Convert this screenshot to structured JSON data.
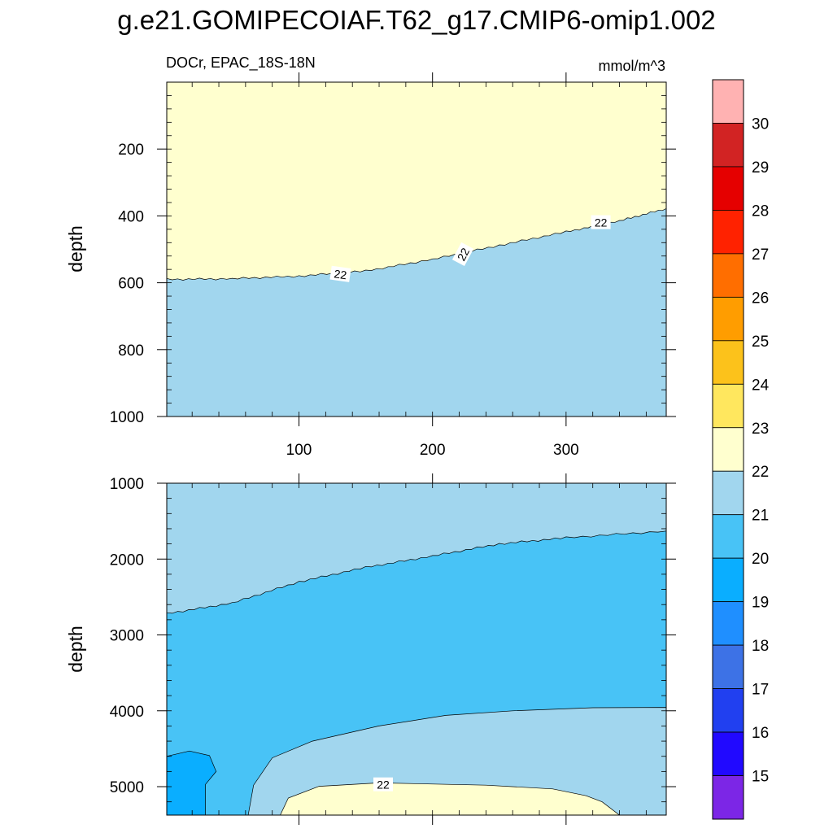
{
  "title": "g.e21.GOMIPECOIAF.T62_g17.CMIP6-omip1.002",
  "chart_data": {
    "type": "contour",
    "variable_label": "DOCr, EPAC_18S-18N",
    "units": "mmol/m^3",
    "x_tick_labels": [
      "100",
      "200",
      "300"
    ],
    "x_ticks": [
      100,
      200,
      300
    ],
    "xlim": [
      1,
      375
    ],
    "colors": {
      "below_15": "#7c26e6",
      "15-16": "#2109ff",
      "16-17": "#2140f0",
      "17-18": "#3d72e6",
      "18-19": "#1f8fff",
      "19-20": "#0aaeff",
      "20-21": "#48c3f6",
      "21-22": "#a1d6ee",
      "22-23": "#ffffcf",
      "23-24": "#ffe75e",
      "24-25": "#fcc21b",
      "25-26": "#ff9d00",
      "26-27": "#ff6e00",
      "27-28": "#ff2200",
      "28-29": "#e50000",
      "29-30": "#d22323",
      "above_30": "#ffb2b2"
    },
    "colorbar": {
      "levels": [
        15,
        16,
        17,
        18,
        19,
        20,
        21,
        22,
        23,
        24,
        25,
        26,
        27,
        28,
        29,
        30
      ],
      "labels": [
        "15",
        "16",
        "17",
        "18",
        "19",
        "20",
        "21",
        "22",
        "23",
        "24",
        "25",
        "26",
        "27",
        "28",
        "29",
        "30"
      ]
    },
    "panels": [
      {
        "id": "upper",
        "ylabel": "depth",
        "ylim": [
          0,
          1000
        ],
        "y_reversed": true,
        "y_ticks": [
          200,
          400,
          600,
          800,
          1000
        ],
        "y_tick_labels": [
          "200",
          "400",
          "600",
          "800",
          "1000"
        ],
        "background_band": "21-22",
        "regions": [
          {
            "band": "22-23",
            "boundary": [
              [
                1,
                590
              ],
              [
                50,
                588
              ],
              [
                100,
                580
              ],
              [
                150,
                565
              ],
              [
                200,
                530
              ],
              [
                250,
                488
              ],
              [
                300,
                448
              ],
              [
                340,
                415
              ],
              [
                375,
                378
              ]
            ],
            "fill_side": "above"
          }
        ],
        "contour_labels": [
          {
            "text": "22",
            "x": 131,
            "depth": 575,
            "angle": 8
          },
          {
            "text": "22",
            "x": 223,
            "depth": 515,
            "angle": -62
          },
          {
            "text": "22",
            "x": 326,
            "depth": 420,
            "angle": 0
          }
        ]
      },
      {
        "id": "lower",
        "ylabel": "depth",
        "ylim": [
          1000,
          5375
        ],
        "y_reversed": true,
        "y_ticks": [
          1000,
          2000,
          3000,
          4000,
          5000
        ],
        "y_tick_labels": [
          "1000",
          "2000",
          "3000",
          "4000",
          "5000"
        ],
        "background_band": "20-21",
        "regions": [
          {
            "band": "21-22",
            "boundary": [
              [
                1,
                2720
              ],
              [
                50,
                2580
              ],
              [
                100,
                2300
              ],
              [
                150,
                2110
              ],
              [
                200,
                1960
              ],
              [
                250,
                1800
              ],
              [
                300,
                1720
              ],
              [
                375,
                1630
              ]
            ],
            "fill_side": "above"
          },
          {
            "band": "21-22",
            "polygon": [
              [
                62,
                5375
              ],
              [
                66,
                4980
              ],
              [
                80,
                4620
              ],
              [
                110,
                4400
              ],
              [
                160,
                4200
              ],
              [
                210,
                4060
              ],
              [
                260,
                4000
              ],
              [
                320,
                3960
              ],
              [
                375,
                3955
              ],
              [
                375,
                5375
              ]
            ]
          },
          {
            "band": "19-20",
            "polygon": [
              [
                1,
                5375
              ],
              [
                1,
                4600
              ],
              [
                18,
                4530
              ],
              [
                33,
                4590
              ],
              [
                38,
                4800
              ],
              [
                30,
                4970
              ],
              [
                30,
                5375
              ]
            ]
          },
          {
            "band": "22-23",
            "polygon": [
              [
                86,
                5375
              ],
              [
                92,
                5150
              ],
              [
                115,
                4995
              ],
              [
                160,
                4950
              ],
              [
                240,
                4980
              ],
              [
                290,
                5030
              ],
              [
                315,
                5120
              ],
              [
                327,
                5200
              ],
              [
                340,
                5375
              ]
            ]
          }
        ],
        "contour_labels": [
          {
            "text": "22",
            "x": 163,
            "depth": 4975,
            "angle": 0
          }
        ]
      }
    ],
    "grid": false,
    "legend": "colorbar-right"
  }
}
